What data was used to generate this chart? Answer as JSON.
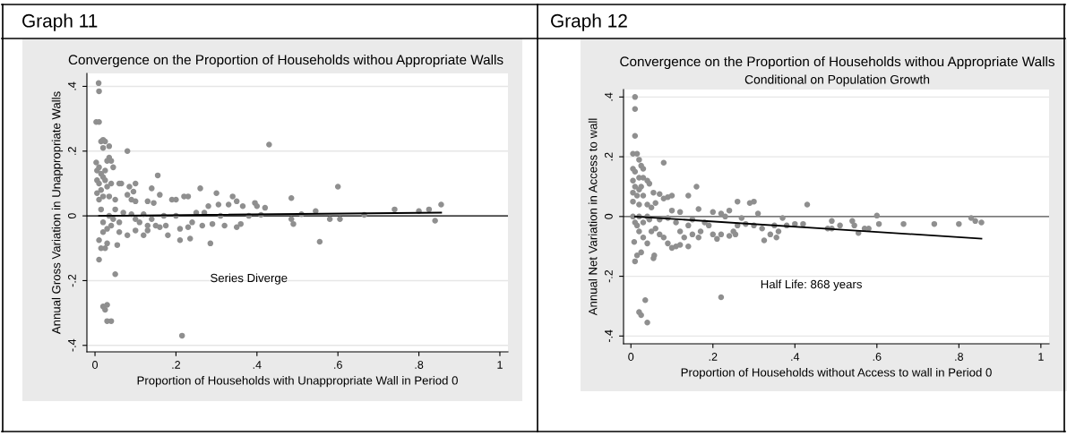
{
  "chart_data": [
    {
      "type": "scatter",
      "title": "Convergence on the Proportion of Households withou Appropriate Walls",
      "xlabel": "Proportion of Households with Unappropriate Wall in Period 0",
      "ylabel": "Annual Gross Variation in Unappropriate Walls",
      "annotations": [
        "Graph 11",
        "Series Diverge"
      ],
      "xlim": [
        -0.02,
        1.02
      ],
      "ylim": [
        -0.42,
        0.44
      ],
      "xticks": [
        0,
        {
          "value": 0.2,
          "label": ".2"
        },
        {
          "value": 0.4,
          "label": ".4"
        },
        {
          "value": 0.6,
          "label": ".6"
        },
        {
          "value": 0.8,
          "label": ".8"
        },
        1
      ],
      "yticks": [
        {
          "value": -0.4,
          "label": "-.4"
        },
        {
          "value": -0.2,
          "label": "-.2"
        },
        0,
        {
          "value": 0.2,
          "label": ".2"
        },
        {
          "value": 0.4,
          "label": ".4"
        }
      ],
      "grid": "y",
      "marker": "circle",
      "ref_lines": [
        {
          "axis": "y",
          "value": 0,
          "color": "#000000"
        }
      ],
      "series": [
        {
          "color": "#8f8f8f",
          "x": [
            0.009,
            0.01,
            0.003,
            0.01,
            0.015,
            0.02,
            0.025,
            0.02,
            0.035,
            0.08,
            0.43,
            0.035,
            0.03,
            0.04,
            0.045,
            0.003,
            0.01,
            0.005,
            0.015,
            0.02,
            0.005,
            0.01,
            0.025,
            0.03,
            0.015,
            0.005,
            0.02,
            0.01,
            0.035,
            0.05,
            0.06,
            0.065,
            0.085,
            0.1,
            0.095,
            0.08,
            0.14,
            0.155,
            0.16,
            0.09,
            0.1,
            0.13,
            0.145,
            0.19,
            0.2,
            0.22,
            0.23,
            0.26,
            0.3,
            0.34,
            0.35,
            0.395,
            0.4,
            0.485,
            0.6,
            0.33,
            0.28,
            0.305,
            0.365,
            0.42,
            0.545,
            0.74,
            0.8,
            0.825,
            0.855,
            0.51,
            0.665,
            0.84,
            0.485,
            0.49,
            0.58,
            0.605,
            0.555,
            0.38,
            0.41,
            0.36,
            0.35,
            0.32,
            0.29,
            0.265,
            0.24,
            0.23,
            0.21,
            0.235,
            0.21,
            0.285,
            0.18,
            0.175,
            0.16,
            0.15,
            0.13,
            0.12,
            0.13,
            0.1,
            0.08,
            0.11,
            0.14,
            0.06,
            0.055,
            0.03,
            0.025,
            0.015,
            0.01,
            0.01,
            0.05,
            0.02,
            0.025,
            0.03,
            0.03,
            0.04,
            0.215,
            0.02,
            0.03,
            0.04,
            0.045,
            0.05,
            0.07,
            0.09,
            0.12,
            0.17,
            0.2,
            0.25,
            0.27,
            0.31,
            0.015,
            0.035,
            0.02,
            0.06,
            0.1,
            0.04,
            0.025
          ],
          "values": [
            0.41,
            0.385,
            0.29,
            0.29,
            0.23,
            0.235,
            0.23,
            0.21,
            0.215,
            0.2,
            0.22,
            0.18,
            0.17,
            0.17,
            0.15,
            0.165,
            0.15,
            0.14,
            0.13,
            0.12,
            0.11,
            0.1,
            0.11,
            0.09,
            0.08,
            0.07,
            0.06,
            0.05,
            0.06,
            0.05,
            0.1,
            0.1,
            0.09,
            0.1,
            0.075,
            0.065,
            0.085,
            0.125,
            0.065,
            0.05,
            0.045,
            0.045,
            0.04,
            0.05,
            0.05,
            0.06,
            0.06,
            0.085,
            0.07,
            0.06,
            0.045,
            0.04,
            0.03,
            0.055,
            0.09,
            0.035,
            0.03,
            0.035,
            0.03,
            0.025,
            0.015,
            0.02,
            0.015,
            0.02,
            0.035,
            0.005,
            0.003,
            -0.015,
            -0.01,
            -0.025,
            -0.01,
            -0.01,
            -0.08,
            0.0,
            0.003,
            -0.025,
            -0.035,
            -0.03,
            -0.025,
            -0.03,
            -0.02,
            -0.035,
            -0.04,
            -0.07,
            -0.075,
            -0.085,
            -0.06,
            -0.03,
            -0.035,
            -0.03,
            -0.03,
            -0.06,
            -0.045,
            -0.045,
            -0.06,
            -0.02,
            -0.01,
            -0.05,
            -0.09,
            -0.085,
            -0.1,
            -0.1,
            -0.075,
            -0.135,
            -0.18,
            -0.28,
            -0.29,
            -0.275,
            -0.325,
            -0.325,
            -0.37,
            -0.02,
            -0.04,
            -0.03,
            -0.01,
            0.02,
            0.01,
            0.005,
            0.005,
            0.0,
            0.0,
            0.01,
            0.01,
            0.0,
            0.02,
            0.0,
            -0.05,
            -0.02,
            -0.01,
            0.1,
            0.14
          ]
        },
        {
          "type": "line",
          "marker": "none",
          "color": "#000000",
          "x": [
            0.01,
            0.855
          ],
          "values": [
            0.0,
            0.01
          ]
        }
      ]
    },
    {
      "type": "scatter",
      "title": "Convergence on the Proportion of Households withou Appropriate Walls",
      "subtitle": "Conditional on Population Growth",
      "xlabel": "Proportion of Households without Access to wall in Period 0",
      "ylabel": "Annual Net Variation in Access to wall",
      "annotations": [
        "Graph 12",
        "Half Life: 868 years"
      ],
      "xlim": [
        -0.018,
        1.02
      ],
      "ylim": [
        -0.426,
        0.425
      ],
      "xticks": [
        0,
        {
          "value": 0.2,
          "label": ".2"
        },
        {
          "value": 0.4,
          "label": ".4"
        },
        {
          "value": 0.6,
          "label": ".6"
        },
        {
          "value": 0.8,
          "label": ".8"
        },
        1
      ],
      "yticks": [
        {
          "value": -0.4,
          "label": "-.4"
        },
        {
          "value": -0.2,
          "label": "-.2"
        },
        0,
        {
          "value": 0.2,
          "label": ".2"
        },
        {
          "value": 0.4,
          "label": ".4"
        }
      ],
      "grid": "y",
      "marker": "circle",
      "ref_lines": [
        {
          "axis": "y",
          "value": 0,
          "color": "#555555"
        }
      ],
      "series": [
        {
          "color": "#8f8f8f",
          "x": [
            0.01,
            0.01,
            0.01,
            0.005,
            0.015,
            0.02,
            0.025,
            0.03,
            0.08,
            0.005,
            0.01,
            0.02,
            0.03,
            0.04,
            0.045,
            0.005,
            0.01,
            0.02,
            0.025,
            0.005,
            0.015,
            0.03,
            0.005,
            0.02,
            0.04,
            0.055,
            0.07,
            0.08,
            0.09,
            0.1,
            0.14,
            0.16,
            0.06,
            0.05,
            0.1,
            0.12,
            0.165,
            0.2,
            0.22,
            0.24,
            0.26,
            0.29,
            0.3,
            0.31,
            0.43,
            0.6,
            0.83,
            0.84,
            0.855,
            0.8,
            0.74,
            0.665,
            0.605,
            0.58,
            0.57,
            0.555,
            0.54,
            0.545,
            0.51,
            0.49,
            0.49,
            0.48,
            0.42,
            0.4,
            0.38,
            0.37,
            0.36,
            0.35,
            0.355,
            0.34,
            0.325,
            0.32,
            0.3,
            0.28,
            0.26,
            0.255,
            0.25,
            0.24,
            0.22,
            0.21,
            0.2,
            0.19,
            0.18,
            0.17,
            0.165,
            0.15,
            0.14,
            0.13,
            0.12,
            0.11,
            0.1,
            0.09,
            0.08,
            0.07,
            0.06,
            0.05,
            0.04,
            0.03,
            0.02,
            0.01,
            0.015,
            0.03,
            0.045,
            0.005,
            0.02,
            0.04,
            0.07,
            0.09,
            0.11,
            0.15,
            0.008,
            0.01,
            0.015,
            0.025,
            0.055,
            0.057,
            0.035,
            0.02,
            0.025,
            0.04,
            0.22,
            0.14,
            0.12,
            0.23,
            0.27
          ],
          "values": [
            0.4,
            0.36,
            0.27,
            0.21,
            0.21,
            0.19,
            0.17,
            0.16,
            0.18,
            0.16,
            0.15,
            0.13,
            0.13,
            0.12,
            0.11,
            0.12,
            0.1,
            0.09,
            0.1,
            0.08,
            0.07,
            0.07,
            0.05,
            0.04,
            0.04,
            0.08,
            0.075,
            0.06,
            0.065,
            0.07,
            0.07,
            0.1,
            0.045,
            0.03,
            0.02,
            0.015,
            0.025,
            0.015,
            0.01,
            0.02,
            0.05,
            0.045,
            0.05,
            0.01,
            0.04,
            0.003,
            -0.005,
            -0.015,
            -0.02,
            -0.025,
            -0.025,
            -0.025,
            -0.025,
            -0.04,
            -0.04,
            -0.055,
            -0.015,
            -0.03,
            -0.03,
            -0.015,
            -0.04,
            -0.04,
            -0.025,
            -0.025,
            -0.03,
            -0.005,
            -0.05,
            -0.03,
            -0.07,
            -0.06,
            -0.08,
            -0.04,
            -0.03,
            -0.025,
            -0.03,
            -0.06,
            -0.05,
            -0.065,
            -0.06,
            -0.075,
            -0.06,
            -0.03,
            -0.02,
            -0.05,
            -0.07,
            -0.06,
            -0.03,
            -0.07,
            -0.05,
            -0.1,
            -0.105,
            -0.09,
            -0.07,
            -0.06,
            -0.04,
            -0.05,
            -0.09,
            -0.07,
            -0.05,
            -0.02,
            -0.03,
            -0.02,
            -0.01,
            0.0,
            0.0,
            0.0,
            -0.01,
            -0.005,
            -0.02,
            -0.01,
            -0.085,
            -0.15,
            -0.13,
            -0.12,
            -0.14,
            -0.13,
            -0.28,
            -0.32,
            -0.33,
            -0.355,
            -0.27,
            -0.1,
            -0.095,
            0.0,
            -0.005
          ]
        },
        {
          "type": "line",
          "marker": "none",
          "color": "#000000",
          "x": [
            0.01,
            0.855
          ],
          "values": [
            0.0,
            -0.074
          ]
        }
      ]
    }
  ]
}
